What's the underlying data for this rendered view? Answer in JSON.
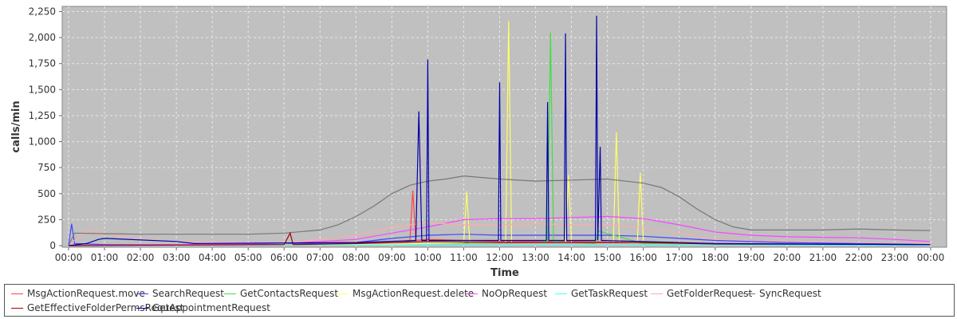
{
  "chart_data": {
    "type": "line",
    "xlabel": "Time",
    "ylabel": "calls/min",
    "ylim": [
      0,
      2300
    ],
    "xlim": [
      "00:00",
      "00:00"
    ],
    "grid": true,
    "legend_position": "bottom",
    "x_ticks": [
      "00:00",
      "01:00",
      "02:00",
      "03:00",
      "04:00",
      "05:00",
      "06:00",
      "07:00",
      "08:00",
      "09:00",
      "10:00",
      "11:00",
      "12:00",
      "13:00",
      "14:00",
      "15:00",
      "16:00",
      "17:00",
      "18:00",
      "19:00",
      "20:00",
      "21:00",
      "22:00",
      "23:00",
      "00:00"
    ],
    "y_ticks": [
      "0",
      "250",
      "500",
      "750",
      "1,000",
      "1,250",
      "1,500",
      "1,750",
      "2,000",
      "2,250"
    ],
    "y_tick_values": [
      0,
      250,
      500,
      750,
      1000,
      1250,
      1500,
      1750,
      2000,
      2250
    ],
    "series": [
      {
        "name": "MsgActionRequest.move",
        "color": "#ff4444",
        "x": [
          "00:00",
          "06:00",
          "08:00",
          "09:00",
          "09:30",
          "09:35",
          "09:40",
          "10:00",
          "12:00",
          "14:00",
          "16:00",
          "18:00",
          "20:00",
          "23:59"
        ],
        "y": [
          0,
          10,
          20,
          30,
          40,
          530,
          50,
          60,
          40,
          40,
          30,
          20,
          15,
          10
        ]
      },
      {
        "name": "SearchRequest",
        "color": "#4444ff",
        "x": [
          "00:00",
          "00:05",
          "00:10",
          "01:00",
          "03:00",
          "04:00",
          "08:00",
          "09:00",
          "10:00",
          "11:00",
          "12:00",
          "13:00",
          "14:00",
          "15:00",
          "16:00",
          "17:00",
          "18:00",
          "20:00",
          "22:00",
          "23:59"
        ],
        "y": [
          0,
          210,
          20,
          10,
          10,
          10,
          30,
          70,
          100,
          110,
          100,
          100,
          100,
          100,
          90,
          70,
          50,
          30,
          20,
          15
        ]
      },
      {
        "name": "GetContactsRequest",
        "color": "#44dd44",
        "x": [
          "00:00",
          "08:00",
          "10:00",
          "13:00",
          "13:20",
          "13:25",
          "13:30",
          "14:00",
          "14:40",
          "14:45",
          "16:00",
          "18:00",
          "23:59"
        ],
        "y": [
          0,
          10,
          20,
          30,
          40,
          2050,
          40,
          30,
          20,
          140,
          20,
          10,
          5
        ]
      },
      {
        "name": "MsgActionRequest.delete",
        "color": "#ffff66",
        "x": [
          "00:00",
          "08:00",
          "10:00",
          "11:00",
          "11:05",
          "11:10",
          "12:10",
          "12:15",
          "12:20",
          "13:50",
          "13:55",
          "14:00",
          "15:10",
          "15:15",
          "15:20",
          "15:50",
          "15:55",
          "16:00",
          "18:00",
          "23:59"
        ],
        "y": [
          0,
          10,
          20,
          30,
          520,
          30,
          30,
          2160,
          30,
          30,
          680,
          30,
          30,
          1090,
          30,
          30,
          700,
          30,
          10,
          5
        ]
      },
      {
        "name": "NoOpRequest",
        "color": "#ff44ff",
        "x": [
          "00:00",
          "06:00",
          "08:00",
          "09:00",
          "10:00",
          "11:00",
          "12:00",
          "13:00",
          "14:00",
          "15:00",
          "16:00",
          "17:00",
          "18:00",
          "19:00",
          "20:00",
          "21:00",
          "22:00",
          "23:00",
          "23:59"
        ],
        "y": [
          0,
          20,
          60,
          120,
          180,
          250,
          260,
          260,
          270,
          280,
          260,
          200,
          130,
          100,
          85,
          80,
          75,
          60,
          40
        ]
      },
      {
        "name": "GetTaskRequest",
        "color": "#44ffff",
        "x": [
          "00:00",
          "08:00",
          "12:00",
          "16:00",
          "20:00",
          "23:59"
        ],
        "y": [
          0,
          5,
          10,
          10,
          5,
          3
        ]
      },
      {
        "name": "GetFolderRequest",
        "color": "#ffaaaa",
        "x": [
          "00:00",
          "00:30",
          "01:00",
          "02:00",
          "03:00",
          "06:00",
          "08:00",
          "09:00",
          "10:00",
          "11:00",
          "12:00",
          "13:00",
          "14:00",
          "15:00",
          "16:00",
          "17:00",
          "18:00",
          "20:00",
          "22:00",
          "23:59"
        ],
        "y": [
          0,
          150,
          120,
          60,
          40,
          20,
          100,
          180,
          220,
          200,
          200,
          210,
          200,
          200,
          170,
          120,
          60,
          40,
          30,
          20
        ]
      },
      {
        "name": "SyncRequest",
        "color": "#777777",
        "x": [
          "00:00",
          "00:10",
          "01:00",
          "02:00",
          "03:00",
          "04:00",
          "05:00",
          "06:00",
          "07:00",
          "07:30",
          "08:00",
          "08:30",
          "09:00",
          "09:30",
          "10:00",
          "10:30",
          "11:00",
          "12:00",
          "13:00",
          "14:00",
          "15:00",
          "16:00",
          "16:30",
          "17:00",
          "17:30",
          "18:00",
          "18:30",
          "19:00",
          "20:00",
          "21:00",
          "22:00",
          "23:00",
          "23:59"
        ],
        "y": [
          0,
          120,
          115,
          110,
          110,
          110,
          110,
          120,
          150,
          200,
          280,
          380,
          500,
          580,
          620,
          640,
          670,
          640,
          620,
          630,
          640,
          600,
          560,
          470,
          350,
          250,
          180,
          150,
          150,
          150,
          160,
          150,
          145
        ]
      },
      {
        "name": "GetEffectiveFolderPermsRequest",
        "color": "#aa0000",
        "x": [
          "00:00",
          "06:00",
          "06:10",
          "06:15",
          "06:20",
          "08:00",
          "10:00",
          "12:00",
          "14:00",
          "16:00",
          "18:00",
          "23:59"
        ],
        "y": [
          0,
          10,
          120,
          10,
          10,
          20,
          40,
          30,
          30,
          30,
          15,
          10
        ]
      },
      {
        "name": "GetAppointmentRequest",
        "color": "#0000aa",
        "x": [
          "00:00",
          "00:30",
          "00:50",
          "01:00",
          "03:00",
          "03:30",
          "08:00",
          "09:40",
          "09:45",
          "09:50",
          "09:58",
          "10:00",
          "10:02",
          "11:58",
          "12:00",
          "12:02",
          "13:18",
          "13:20",
          "13:22",
          "13:48",
          "13:50",
          "13:52",
          "13:55",
          "14:40",
          "14:42",
          "14:44",
          "14:48",
          "14:50",
          "14:52",
          "16:00",
          "18:00",
          "23:59"
        ],
        "y": [
          0,
          20,
          60,
          70,
          40,
          20,
          30,
          50,
          1290,
          50,
          50,
          1790,
          50,
          50,
          1570,
          50,
          50,
          1380,
          50,
          50,
          2040,
          50,
          50,
          50,
          2210,
          50,
          950,
          50,
          50,
          40,
          20,
          10
        ]
      }
    ]
  }
}
